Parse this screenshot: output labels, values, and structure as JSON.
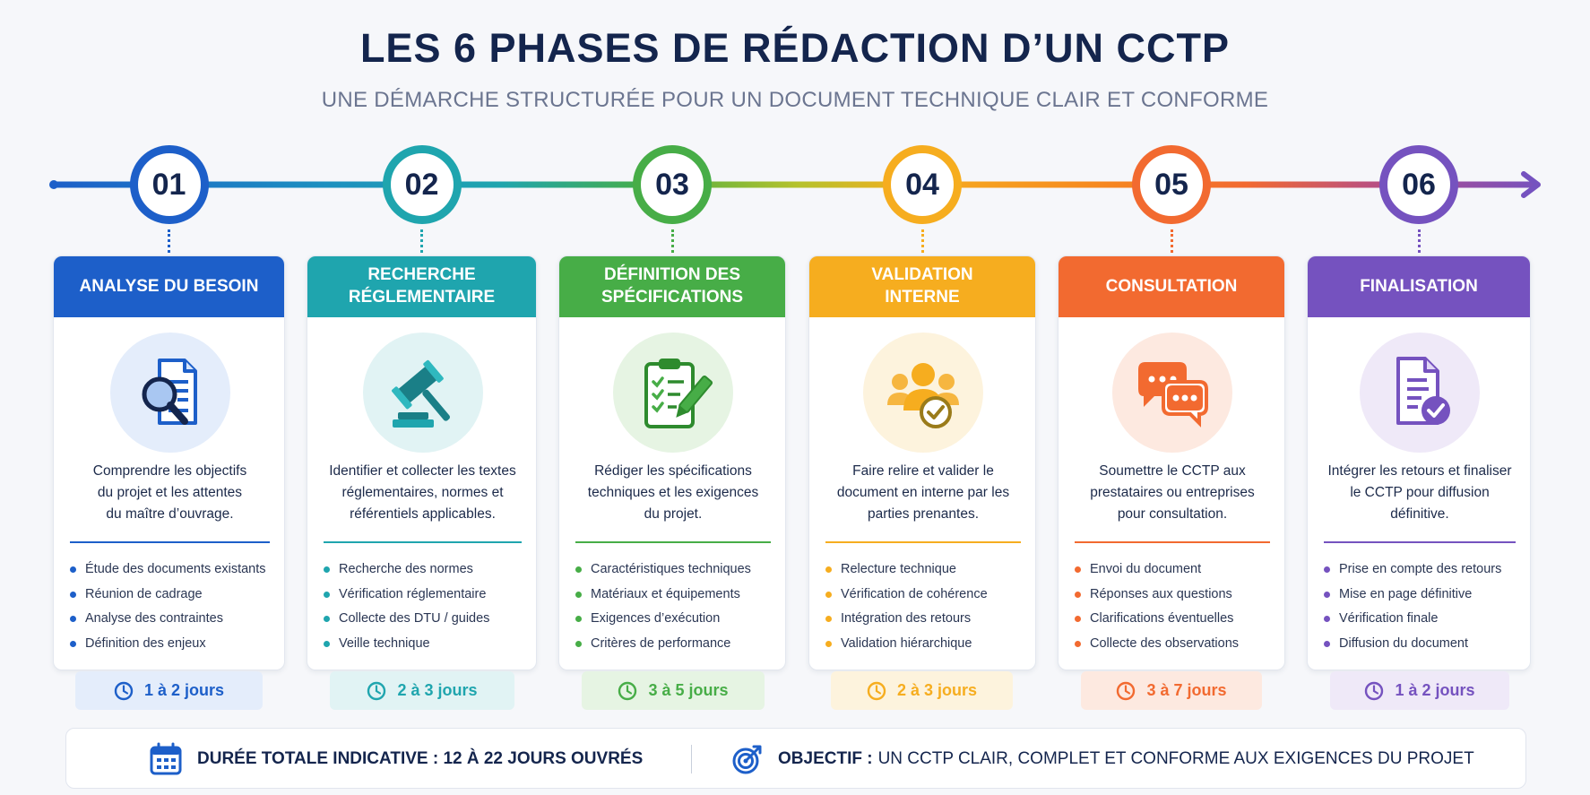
{
  "title": "LES 6 PHASES DE RÉDACTION D’UN CCTP",
  "subtitle": "UNE DÉMARCHE STRUCTURÉE POUR UN DOCUMENT TECHNIQUE CLAIR ET CONFORME",
  "phases": [
    {
      "number": "01",
      "title_lines": [
        "ANALYSE DU BESOIN"
      ],
      "icon": "document-search-icon",
      "color": "#1d5fc9",
      "light": "#e4edfb",
      "desc_lines": [
        "Comprendre les objectifs",
        "du projet et les attentes",
        "du maître d’ouvrage."
      ],
      "items": [
        "Étude des documents existants",
        "Réunion de cadrage",
        "Analyse des contraintes",
        "Définition des enjeux"
      ],
      "duration": "1 à 2 jours"
    },
    {
      "number": "02",
      "title_lines": [
        "RECHERCHE",
        "RÉGLEMENTAIRE"
      ],
      "icon": "gavel-icon",
      "color": "#1fa5ae",
      "light": "#e1f3f4",
      "desc_lines": [
        "Identifier et collecter les textes",
        "réglementaires, normes et",
        "référentiels applicables."
      ],
      "items": [
        "Recherche des normes",
        "Vérification réglementaire",
        "Collecte des DTU / guides",
        "Veille technique"
      ],
      "duration": "2 à 3 jours"
    },
    {
      "number": "03",
      "title_lines": [
        "DÉFINITION DES",
        "SPÉCIFICATIONS"
      ],
      "icon": "clipboard-checklist-icon",
      "color": "#47ad47",
      "light": "#e6f4e3",
      "desc_lines": [
        "Rédiger les spécifications",
        "techniques et les exigences",
        "du projet."
      ],
      "items": [
        "Caractéristiques techniques",
        "Matériaux et équipements",
        "Exigences d’exécution",
        "Critères de performance"
      ],
      "duration": "3 à 5 jours"
    },
    {
      "number": "04",
      "title_lines": [
        "VALIDATION",
        "INTERNE"
      ],
      "icon": "team-approval-icon",
      "color": "#f6ad1f",
      "light": "#fdf3dd",
      "desc_lines": [
        "Faire relire et valider le",
        "document en interne par les",
        "parties prenantes."
      ],
      "items": [
        "Relecture technique",
        "Vérification de cohérence",
        "Intégration des retours",
        "Validation hiérarchique"
      ],
      "duration": "2 à 3 jours"
    },
    {
      "number": "05",
      "title_lines": [
        "CONSULTATION"
      ],
      "icon": "chat-bubbles-icon",
      "color": "#f26a30",
      "light": "#fde9e0",
      "desc_lines": [
        "Soumettre le CCTP aux",
        "prestataires ou entreprises",
        "pour consultation."
      ],
      "items": [
        "Envoi du document",
        "Réponses aux questions",
        "Clarifications éventuelles",
        "Collecte des observations"
      ],
      "duration": "3 à 7 jours"
    },
    {
      "number": "06",
      "title_lines": [
        "FINALISATION"
      ],
      "icon": "document-check-icon",
      "color": "#7552bf",
      "light": "#efe9f8",
      "desc_lines": [
        "Intégrer les retours et finaliser",
        "le CCTP pour diffusion",
        "définitive."
      ],
      "items": [
        "Prise en compte des retours",
        "Mise en page définitive",
        "Vérification finale",
        "Diffusion du document"
      ],
      "duration": "1 à 2 jours"
    }
  ],
  "footer": {
    "total_icon": "calendar-icon",
    "total_text": "DURÉE TOTALE INDICATIVE : 12 À 22 JOURS OUVRÉS",
    "objective_icon": "target-icon",
    "objective_label": "OBJECTIF :",
    "objective_text": "UN CCTP CLAIR, COMPLET ET CONFORME AUX EXIGENCES DU PROJET"
  }
}
